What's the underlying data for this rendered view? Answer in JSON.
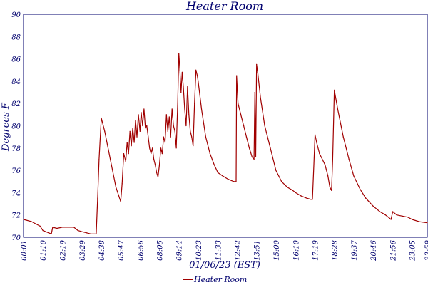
{
  "chart_data": {
    "type": "line",
    "title": "Heater Room",
    "xlabel": "01/06/23 (EST)",
    "ylabel": "Degrees F",
    "ylim": [
      70,
      90
    ],
    "y_ticks": [
      "70",
      "72",
      "74",
      "76",
      "78",
      "80",
      "82",
      "84",
      "86",
      "88",
      "90"
    ],
    "x_ticks": [
      "00:01",
      "01:10",
      "02:19",
      "03:29",
      "04:38",
      "05:47",
      "06:56",
      "08:05",
      "09:14",
      "10:23",
      "11:33",
      "12:42",
      "13:51",
      "15:00",
      "16:10",
      "17:19",
      "18:28",
      "19:37",
      "20:46",
      "21:56",
      "23:05",
      "23:59"
    ],
    "grid": true,
    "legend_position": "bottom",
    "series": [
      {
        "name": "Heater Room",
        "color": "#a00000",
        "x": [
          "00:01",
          "00:30",
          "01:00",
          "01:10",
          "01:30",
          "01:40",
          "01:45",
          "02:00",
          "02:19",
          "02:45",
          "03:00",
          "03:15",
          "03:29",
          "03:45",
          "04:00",
          "04:20",
          "04:25",
          "04:30",
          "04:38",
          "04:50",
          "05:10",
          "05:30",
          "05:47",
          "05:52",
          "05:58",
          "06:05",
          "06:10",
          "06:15",
          "06:20",
          "06:25",
          "06:30",
          "06:35",
          "06:40",
          "06:45",
          "06:50",
          "06:56",
          "07:00",
          "07:05",
          "07:10",
          "07:15",
          "07:20",
          "07:25",
          "07:30",
          "07:35",
          "07:40",
          "07:45",
          "07:50",
          "07:55",
          "08:00",
          "08:05",
          "08:10",
          "08:15",
          "08:20",
          "08:25",
          "08:30",
          "08:35",
          "08:40",
          "08:45",
          "08:50",
          "08:55",
          "09:00",
          "09:05",
          "09:10",
          "09:14",
          "09:18",
          "09:22",
          "09:26",
          "09:30",
          "09:35",
          "09:40",
          "09:45",
          "09:50",
          "09:55",
          "10:00",
          "10:05",
          "10:10",
          "10:15",
          "10:20",
          "10:23",
          "10:35",
          "10:50",
          "11:05",
          "11:20",
          "11:33",
          "11:50",
          "12:10",
          "12:30",
          "12:38",
          "12:40",
          "12:45",
          "12:55",
          "13:05",
          "13:15",
          "13:25",
          "13:35",
          "13:42",
          "13:45",
          "13:48",
          "13:51",
          "13:55",
          "14:05",
          "14:20",
          "14:40",
          "15:00",
          "15:20",
          "15:40",
          "16:00",
          "16:10",
          "16:30",
          "16:50",
          "17:05",
          "17:10",
          "17:15",
          "17:19",
          "17:25",
          "17:35",
          "17:45",
          "17:55",
          "18:05",
          "18:12",
          "18:18",
          "18:22",
          "18:28",
          "18:40",
          "19:00",
          "19:20",
          "19:37",
          "20:00",
          "20:20",
          "20:46",
          "21:10",
          "21:30",
          "21:45",
          "21:50",
          "21:56",
          "22:10",
          "22:30",
          "22:50",
          "23:05",
          "23:30",
          "23:59"
        ],
        "values": [
          71.6,
          71.4,
          71.0,
          70.6,
          70.4,
          70.3,
          70.9,
          70.8,
          70.9,
          70.9,
          70.9,
          70.6,
          70.5,
          70.4,
          70.3,
          70.3,
          73.5,
          77.0,
          80.7,
          79.5,
          77.0,
          74.5,
          73.2,
          74.8,
          77.5,
          76.8,
          78.5,
          77.5,
          79.5,
          78.2,
          79.8,
          78.5,
          80.5,
          79.0,
          81.0,
          79.5,
          81.2,
          80.0,
          81.5,
          79.8,
          80.0,
          79.0,
          78.0,
          77.5,
          78.0,
          77.0,
          76.5,
          75.8,
          75.4,
          76.5,
          78.0,
          77.5,
          79.0,
          78.5,
          81.0,
          79.5,
          80.8,
          79.0,
          81.5,
          80.0,
          79.5,
          78.0,
          82.0,
          86.5,
          85.0,
          83.0,
          84.8,
          83.5,
          81.5,
          80.0,
          83.5,
          81.0,
          79.5,
          79.0,
          78.2,
          82.0,
          85.0,
          84.5,
          84.0,
          81.5,
          79.0,
          77.5,
          76.5,
          75.8,
          75.5,
          75.2,
          75.0,
          75.0,
          84.5,
          82.0,
          81.0,
          80.0,
          79.0,
          78.0,
          77.2,
          77.0,
          83.0,
          77.2,
          85.5,
          84.8,
          82.5,
          80.0,
          78.0,
          76.0,
          75.0,
          74.5,
          74.2,
          74.0,
          73.7,
          73.5,
          73.4,
          73.4,
          76.5,
          79.2,
          78.5,
          77.5,
          77.0,
          76.5,
          75.5,
          74.5,
          74.2,
          77.0,
          83.2,
          81.5,
          79.0,
          77.0,
          75.5,
          74.3,
          73.5,
          72.8,
          72.3,
          72.0,
          71.7,
          71.6,
          72.3,
          72.0,
          71.9,
          71.8,
          71.6,
          71.4,
          71.3
        ]
      }
    ]
  }
}
